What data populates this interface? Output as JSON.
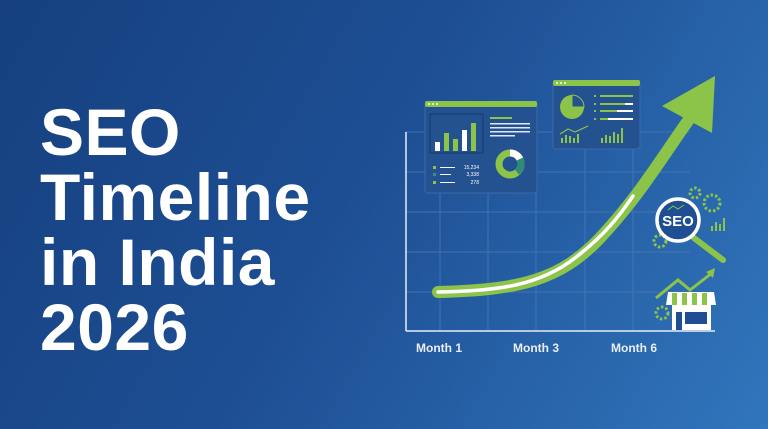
{
  "title": {
    "lines": [
      "SEO",
      "Timeline",
      "in India",
      "2026"
    ]
  },
  "graphic": {
    "x_labels": [
      "Month 1",
      "Month 3",
      "Month 6"
    ],
    "dashboard_stats": [
      "15,234",
      "3,338",
      "278"
    ],
    "badge_text": "SEO",
    "icons": [
      "growth-arrow-icon",
      "magnifier-seo-icon",
      "gear-icon",
      "storefront-icon",
      "bar-chart-icon",
      "pie-chart-icon",
      "donut-chart-icon"
    ]
  },
  "colors": {
    "accent": "#8cc44a",
    "background": "#1d4e93",
    "panel": "#25508f",
    "text": "#ffffff"
  }
}
